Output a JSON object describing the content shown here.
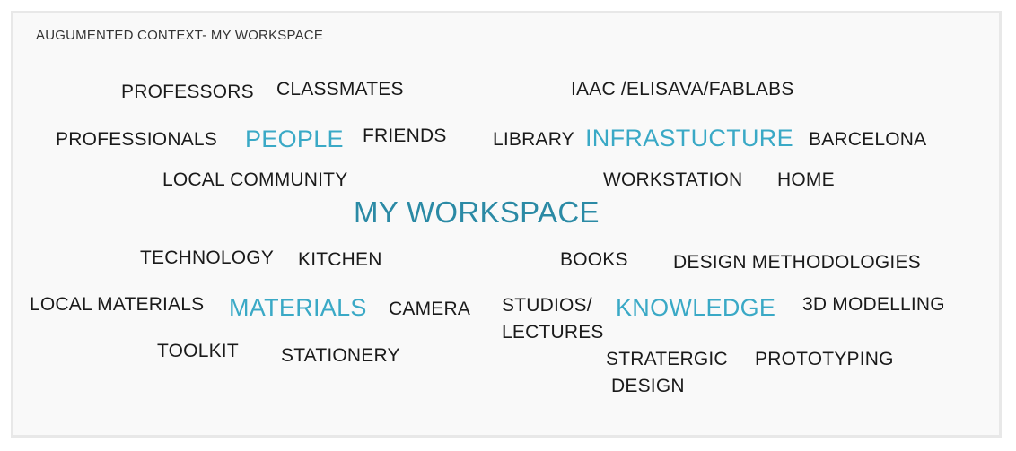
{
  "title": "AUGUMENTED CONTEXT- MY WORKSPACE",
  "colors": {
    "accent_light": "#3aa9c6",
    "accent_dark": "#2b8aa5",
    "text": "#1a1a1a"
  },
  "center": "MY WORKSPACE",
  "categories": {
    "people": "PEOPLE",
    "infrastructure": "INFRASTUCTURE",
    "materials": "MATERIALS",
    "knowledge": "KNOWLEDGE"
  },
  "people_items": {
    "professors": "PROFESSORS",
    "classmates": "CLASSMATES",
    "professionals": "PROFESSIONALS",
    "friends": "FRIENDS",
    "local_community": "LOCAL COMMUNITY"
  },
  "infrastructure_items": {
    "iaac": "IAAC /ELISAVA/FABLABS",
    "library": "LIBRARY",
    "barcelona": "BARCELONA",
    "workstation": "WORKSTATION",
    "home": "HOME"
  },
  "materials_items": {
    "technology": "TECHNOLOGY",
    "kitchen": "KITCHEN",
    "local_materials": "LOCAL MATERIALS",
    "camera": "CAMERA",
    "toolkit": "TOOLKIT",
    "stationery": "STATIONERY"
  },
  "knowledge_items": {
    "books": "BOOKS",
    "design_methodologies": "DESIGN METHODOLOGIES",
    "studios_line1": "STUDIOS/",
    "studios_line2": "LECTURES",
    "modelling": "3D MODELLING",
    "strategic_line1": "STRATERGIC",
    "strategic_line2": "DESIGN",
    "prototyping": "PROTOTYPING"
  }
}
